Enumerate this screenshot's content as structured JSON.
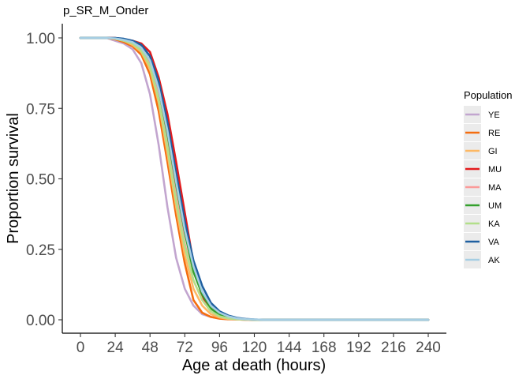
{
  "chart_data": {
    "type": "line",
    "title": "p_SR_M_Onder",
    "xlabel": "Age at death (hours)",
    "ylabel": "Proportion survival",
    "xlim": [
      0,
      240
    ],
    "ylim": [
      0,
      1
    ],
    "x_ticks": [
      0,
      24,
      48,
      72,
      96,
      120,
      144,
      168,
      192,
      216,
      240
    ],
    "y_ticks": [
      0,
      0.25,
      0.5,
      0.75,
      1.0
    ],
    "y_tick_labels": [
      "0.00",
      "0.25",
      "0.50",
      "0.75",
      "1.00"
    ],
    "grid": false,
    "legend": {
      "title": "Population",
      "position": "right"
    },
    "x": [
      0,
      6,
      12,
      18,
      24,
      30,
      36,
      42,
      48,
      54,
      60,
      66,
      72,
      78,
      84,
      90,
      96,
      102,
      108,
      114,
      120,
      126,
      132,
      138,
      144,
      150,
      156,
      162,
      168,
      174,
      180,
      186,
      192,
      198,
      204,
      210,
      216,
      222,
      228,
      234,
      240
    ],
    "series": [
      {
        "name": "YE",
        "color": "#c2a5cf",
        "values": [
          1,
          1,
          1,
          1,
          0.99,
          0.98,
          0.96,
          0.91,
          0.8,
          0.62,
          0.4,
          0.22,
          0.11,
          0.05,
          0.02,
          0.01,
          0.005,
          0.002,
          0.001,
          0,
          0,
          0,
          0,
          0,
          0,
          0,
          0,
          0,
          0,
          0,
          0,
          0,
          0,
          0,
          0,
          0,
          0,
          0,
          0,
          0,
          0
        ]
      },
      {
        "name": "RE",
        "color": "#f46d0f",
        "values": [
          1,
          1,
          1,
          1,
          0.995,
          0.985,
          0.97,
          0.94,
          0.87,
          0.74,
          0.56,
          0.37,
          0.2,
          0.07,
          0.025,
          0.01,
          0.004,
          0.002,
          0.001,
          0,
          0,
          0,
          0,
          0,
          0,
          0,
          0,
          0,
          0,
          0,
          0,
          0,
          0,
          0,
          0,
          0,
          0,
          0,
          0,
          0,
          0
        ]
      },
      {
        "name": "GI",
        "color": "#fdb863",
        "values": [
          1,
          1,
          1,
          1,
          0.997,
          0.99,
          0.975,
          0.95,
          0.89,
          0.77,
          0.59,
          0.4,
          0.23,
          0.11,
          0.05,
          0.02,
          0.008,
          0.003,
          0.001,
          0,
          0,
          0,
          0,
          0,
          0,
          0,
          0,
          0,
          0,
          0,
          0,
          0,
          0,
          0,
          0,
          0,
          0,
          0,
          0,
          0,
          0
        ]
      },
      {
        "name": "MU",
        "color": "#e31a1c",
        "values": [
          1,
          1,
          1,
          1,
          1,
          0.995,
          0.99,
          0.98,
          0.95,
          0.86,
          0.73,
          0.56,
          0.38,
          0.2,
          0.08,
          0.04,
          0.02,
          0.008,
          0.003,
          0.001,
          0,
          0,
          0,
          0,
          0,
          0,
          0,
          0,
          0,
          0,
          0,
          0,
          0,
          0,
          0,
          0,
          0,
          0,
          0,
          0,
          0
        ]
      },
      {
        "name": "MA",
        "color": "#fb9a99",
        "values": [
          1,
          1,
          1,
          1,
          0.997,
          0.99,
          0.98,
          0.96,
          0.91,
          0.8,
          0.63,
          0.44,
          0.27,
          0.14,
          0.07,
          0.03,
          0.012,
          0.005,
          0.002,
          0.001,
          0,
          0,
          0,
          0,
          0,
          0,
          0,
          0,
          0,
          0,
          0,
          0,
          0,
          0,
          0,
          0,
          0,
          0,
          0,
          0,
          0
        ]
      },
      {
        "name": "UM",
        "color": "#33a02c",
        "values": [
          1,
          1,
          1,
          1,
          0.998,
          0.993,
          0.985,
          0.965,
          0.92,
          0.82,
          0.66,
          0.48,
          0.31,
          0.17,
          0.09,
          0.04,
          0.018,
          0.007,
          0.003,
          0.001,
          0,
          0,
          0,
          0,
          0,
          0,
          0,
          0,
          0,
          0,
          0,
          0,
          0,
          0,
          0,
          0,
          0,
          0,
          0,
          0,
          0
        ]
      },
      {
        "name": "KA",
        "color": "#b2df8a",
        "values": [
          1,
          1,
          1,
          1,
          0.997,
          0.99,
          0.98,
          0.955,
          0.9,
          0.78,
          0.61,
          0.42,
          0.26,
          0.14,
          0.07,
          0.03,
          0.012,
          0.005,
          0.002,
          0.001,
          0,
          0,
          0,
          0,
          0,
          0,
          0,
          0,
          0,
          0,
          0,
          0,
          0,
          0,
          0,
          0,
          0,
          0,
          0,
          0,
          0
        ]
      },
      {
        "name": "VA",
        "color": "#1f5fa0",
        "values": [
          1,
          1,
          1,
          1,
          1,
          0.997,
          0.99,
          0.975,
          0.935,
          0.845,
          0.7,
          0.52,
          0.35,
          0.21,
          0.12,
          0.06,
          0.03,
          0.015,
          0.007,
          0.003,
          0.001,
          0,
          0,
          0,
          0,
          0,
          0,
          0,
          0,
          0,
          0,
          0,
          0,
          0,
          0,
          0,
          0,
          0,
          0,
          0,
          0
        ]
      },
      {
        "name": "AK",
        "color": "#a6cee3",
        "values": [
          1,
          1,
          1,
          1,
          0.998,
          0.993,
          0.985,
          0.965,
          0.92,
          0.82,
          0.67,
          0.49,
          0.32,
          0.19,
          0.1,
          0.05,
          0.025,
          0.012,
          0.005,
          0.002,
          0.001,
          0,
          0,
          0,
          0,
          0,
          0,
          0,
          0,
          0,
          0,
          0,
          0,
          0,
          0,
          0,
          0,
          0,
          0,
          0,
          0
        ]
      }
    ]
  }
}
